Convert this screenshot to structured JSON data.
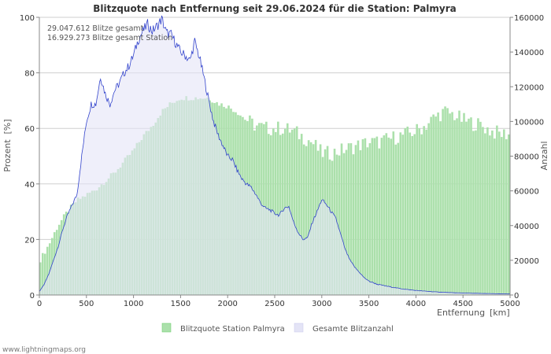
{
  "chart_data": {
    "type": "bar+area",
    "title": "Blitzquote nach Entfernung seit 29.06.2024 für die Station: Palmyra",
    "xlabel": "Entfernung",
    "xunit": "[km]",
    "ylabel_left": "Prozent",
    "ylabel_left_unit": "[%]",
    "ylabel_right": "Anzahl",
    "xlim": [
      0,
      5000
    ],
    "ylim_left": [
      0,
      100
    ],
    "ylim_right": [
      0,
      160000
    ],
    "x_ticks": [
      0,
      500,
      1000,
      1500,
      2000,
      2500,
      3000,
      3500,
      4000,
      4500,
      5000
    ],
    "x_tick_labels": [
      "0",
      "500",
      "1000",
      "1500",
      "2000",
      "2500",
      "3000",
      "3500",
      "4000",
      "4500",
      "5000"
    ],
    "y_left_ticks": [
      0,
      20,
      40,
      60,
      80,
      100
    ],
    "y_left_tick_labels": [
      "0",
      "20",
      "40",
      "60",
      "80",
      "100"
    ],
    "y_right_ticks": [
      0,
      20000,
      40000,
      60000,
      80000,
      100000,
      120000,
      140000,
      160000
    ],
    "y_right_tick_labels": [
      "0",
      "20000",
      "40000",
      "60000",
      "80000",
      "100000",
      "120000",
      "140000",
      "160000"
    ],
    "annotations": [
      "29.047.612 Blitze gesamt",
      "16.929.273 Blitze gesamt Station"
    ],
    "legend": [
      "Blitzquote Station Palmyra",
      "Gesamte Blitzanzahl"
    ],
    "series": [
      {
        "name": "Blitzquote Station Palmyra",
        "kind": "bar",
        "axis": "left",
        "color": "#66cc66",
        "step_km": 25,
        "x_knots": [
          0,
          100,
          200,
          300,
          400,
          500,
          600,
          700,
          800,
          900,
          1000,
          1100,
          1200,
          1300,
          1400,
          1500,
          1600,
          1700,
          1800,
          1900,
          2000,
          2100,
          2200,
          2300,
          2400,
          2500,
          2600,
          2700,
          2800,
          2900,
          3000,
          3100,
          3200,
          3300,
          3400,
          3500,
          3600,
          3700,
          3800,
          3900,
          4000,
          4100,
          4200,
          4300,
          4400,
          4500,
          4600,
          4700,
          4800,
          4900,
          5000
        ],
        "values": [
          12,
          18,
          25,
          30,
          34,
          36,
          38,
          41,
          44,
          48,
          52,
          57,
          61,
          66,
          69,
          71,
          71,
          71,
          71,
          69,
          68,
          66,
          63,
          61,
          60,
          60,
          60,
          59,
          57,
          55,
          51,
          51,
          52,
          53,
          54,
          55,
          55,
          56,
          57,
          58,
          59,
          61,
          64,
          66,
          65,
          63,
          62,
          61,
          59,
          58,
          58
        ]
      },
      {
        "name": "Gesamte Blitzanzahl",
        "kind": "area",
        "axis": "right",
        "color": "#3344cc",
        "fill": "#e4e4f6",
        "x_knots": [
          0,
          50,
          100,
          150,
          200,
          250,
          300,
          350,
          400,
          450,
          500,
          550,
          600,
          650,
          700,
          750,
          800,
          850,
          900,
          950,
          1000,
          1050,
          1100,
          1150,
          1200,
          1250,
          1300,
          1350,
          1400,
          1450,
          1500,
          1550,
          1600,
          1650,
          1700,
          1750,
          1800,
          1850,
          1900,
          1950,
          2000,
          2050,
          2100,
          2150,
          2200,
          2250,
          2300,
          2350,
          2400,
          2450,
          2500,
          2550,
          2600,
          2650,
          2700,
          2750,
          2800,
          2850,
          2900,
          2950,
          3000,
          3050,
          3100,
          3150,
          3200,
          3250,
          3300,
          3350,
          3400,
          3450,
          3500,
          3600,
          3700,
          3800,
          3900,
          4000,
          4200,
          4400,
          4600,
          4800,
          5000
        ],
        "values": [
          2000,
          6000,
          12000,
          20000,
          28000,
          38000,
          46000,
          52000,
          58000,
          80000,
          100000,
          110000,
          110000,
          126000,
          116000,
          110000,
          118000,
          122000,
          128000,
          132000,
          138000,
          147000,
          152000,
          156000,
          152000,
          155000,
          159000,
          151000,
          150000,
          145000,
          140000,
          138000,
          135000,
          146000,
          137000,
          125000,
          112000,
          100000,
          92000,
          86000,
          80000,
          78000,
          72000,
          67000,
          64000,
          62000,
          58000,
          53000,
          50000,
          49000,
          47000,
          46000,
          50000,
          51000,
          42000,
          36000,
          32000,
          33000,
          42000,
          48000,
          55000,
          52000,
          48000,
          44000,
          35000,
          26000,
          20000,
          16000,
          13000,
          10000,
          8000,
          6000,
          5000,
          4000,
          3200,
          2600,
          1800,
          1300,
          1000,
          800,
          600
        ]
      }
    ],
    "grid_y": true
  },
  "footer": {
    "watermark": "www.lightningmaps.org"
  },
  "colors": {
    "bar": "#66cc66",
    "bar_fill": "#abe0ab",
    "area_line": "#3344cc",
    "area_fill": "#e4e4f6"
  }
}
